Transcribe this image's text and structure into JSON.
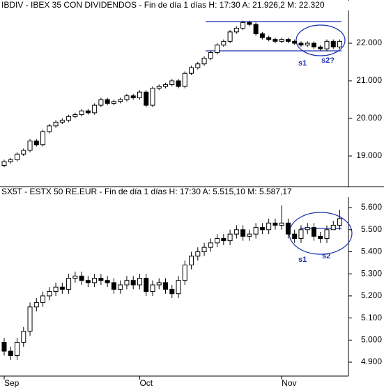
{
  "chart_data": [
    {
      "type": "candlestick",
      "title": "IBDIV - IBEX 35 CON DIVIDENDOS - Fin de día 1 días H: 17:30 A: 21.926,2 M: 22.320",
      "up_color": "#ffffff",
      "down_color": "#000000",
      "open": [
        18750,
        18850,
        18900,
        19050,
        19150,
        19400,
        19300,
        19650,
        19800,
        19900,
        19950,
        20050,
        20100,
        20200,
        20150,
        20350,
        20500,
        20400,
        20450,
        20500,
        20600,
        20550,
        20700,
        20350,
        20800,
        20850,
        20900,
        21000,
        20850,
        21200,
        21350,
        21450,
        21600,
        21750,
        21950,
        22050,
        22300,
        22400,
        22550,
        22500,
        22250,
        22150,
        22100,
        22050,
        22100,
        22050,
        22000,
        21950,
        22000,
        21900,
        21850,
        22050,
        21900
      ],
      "high": [
        18900,
        18950,
        19100,
        19200,
        19450,
        19450,
        19700,
        19850,
        19950,
        20000,
        20100,
        20150,
        20250,
        20250,
        20400,
        20550,
        20550,
        20500,
        20550,
        20650,
        20650,
        20750,
        20750,
        20850,
        20900,
        20950,
        21050,
        21050,
        21250,
        21400,
        21500,
        21650,
        21800,
        22000,
        22100,
        22350,
        22450,
        22600,
        22600,
        22550,
        22300,
        22200,
        22150,
        22150,
        22150,
        22100,
        22050,
        22050,
        22050,
        21950,
        22100,
        22100,
        22100
      ],
      "low": [
        18700,
        18800,
        18850,
        19000,
        19100,
        19250,
        19250,
        19600,
        19750,
        19850,
        19900,
        20000,
        20050,
        20100,
        20100,
        20300,
        20350,
        20350,
        20400,
        20450,
        20500,
        20500,
        20300,
        20300,
        20750,
        20800,
        20850,
        20800,
        20800,
        21150,
        21300,
        21400,
        21550,
        21700,
        21900,
        22000,
        22250,
        22350,
        22450,
        22200,
        22100,
        22050,
        22000,
        22000,
        22000,
        21950,
        21900,
        21900,
        21850,
        21800,
        21800,
        21850,
        21850
      ],
      "close": [
        18850,
        18900,
        19050,
        19150,
        19400,
        19300,
        19650,
        19800,
        19900,
        19950,
        20050,
        20100,
        20200,
        20150,
        20350,
        20500,
        20400,
        20450,
        20500,
        20600,
        20550,
        20700,
        20350,
        20800,
        20850,
        20900,
        21000,
        20850,
        21200,
        21350,
        21450,
        21600,
        21750,
        21950,
        22050,
        22300,
        22400,
        22550,
        22500,
        22250,
        22150,
        22100,
        22050,
        22100,
        22050,
        22000,
        21950,
        22000,
        21900,
        21850,
        22050,
        21900,
        22050
      ],
      "ylim": [
        18240,
        22890
      ],
      "yticks": [
        {
          "value": 19000,
          "label": "19.000"
        },
        {
          "value": 20000,
          "label": "20.000"
        },
        {
          "value": 21000,
          "label": "21.000"
        },
        {
          "value": 22000,
          "label": "22.000"
        }
      ],
      "annotations": [
        "s1",
        "s2?"
      ]
    },
    {
      "type": "candlestick",
      "title": "SX5T - ESTX 50 RE.EUR - Fin de día 1 días H: 17:30 A: 5.515,10 M: 5.587,17",
      "up_color": "#ffffff",
      "down_color": "#000000",
      "categories": [
        "Sep",
        null,
        null,
        null,
        null,
        null,
        null,
        null,
        null,
        null,
        null,
        null,
        null,
        null,
        null,
        null,
        null,
        null,
        null,
        null,
        null,
        "Oct",
        null,
        null,
        null,
        null,
        null,
        null,
        null,
        null,
        null,
        null,
        null,
        null,
        null,
        null,
        null,
        null,
        null,
        null,
        null,
        null,
        null,
        "Nov",
        null,
        null,
        null,
        null,
        null,
        null,
        null,
        null,
        null
      ],
      "open": [
        4990,
        4950,
        4930,
        4990,
        5040,
        5150,
        5170,
        5200,
        5220,
        5240,
        5230,
        5280,
        5290,
        5270,
        5260,
        5280,
        5270,
        5260,
        5230,
        5250,
        5270,
        5250,
        5280,
        5220,
        5250,
        5260,
        5230,
        5210,
        5270,
        5340,
        5380,
        5400,
        5420,
        5440,
        5460,
        5450,
        5480,
        5500,
        5470,
        5480,
        5510,
        5500,
        5530,
        5520,
        5530,
        5480,
        5460,
        5500,
        5510,
        5470,
        5460,
        5500,
        5520
      ],
      "high": [
        5010,
        4970,
        5010,
        5060,
        5170,
        5190,
        5220,
        5240,
        5260,
        5260,
        5300,
        5310,
        5310,
        5290,
        5300,
        5300,
        5290,
        5280,
        5270,
        5290,
        5290,
        5300,
        5300,
        5270,
        5280,
        5280,
        5250,
        5290,
        5360,
        5400,
        5420,
        5440,
        5460,
        5480,
        5480,
        5500,
        5520,
        5520,
        5500,
        5530,
        5530,
        5550,
        5550,
        5610,
        5550,
        5500,
        5520,
        5530,
        5530,
        5490,
        5520,
        5540,
        5590
      ],
      "low": [
        4930,
        4910,
        4910,
        4970,
        5020,
        5130,
        5150,
        5180,
        5200,
        5210,
        5210,
        5260,
        5250,
        5240,
        5240,
        5250,
        5240,
        5210,
        5210,
        5230,
        5230,
        5230,
        5200,
        5200,
        5230,
        5210,
        5190,
        5190,
        5250,
        5320,
        5360,
        5380,
        5400,
        5420,
        5430,
        5430,
        5460,
        5450,
        5450,
        5460,
        5480,
        5480,
        5500,
        5500,
        5460,
        5440,
        5440,
        5480,
        5450,
        5440,
        5440,
        5500,
        5500
      ],
      "close": [
        4950,
        4930,
        4990,
        5040,
        5150,
        5170,
        5200,
        5220,
        5240,
        5230,
        5280,
        5290,
        5270,
        5260,
        5280,
        5270,
        5260,
        5230,
        5250,
        5270,
        5250,
        5280,
        5220,
        5250,
        5260,
        5230,
        5210,
        5270,
        5340,
        5380,
        5400,
        5420,
        5440,
        5460,
        5450,
        5480,
        5500,
        5470,
        5480,
        5510,
        5500,
        5530,
        5520,
        5530,
        5480,
        5460,
        5500,
        5510,
        5470,
        5460,
        5500,
        5520,
        5550
      ],
      "ylim": [
        4837,
        5657
      ],
      "yticks": [
        {
          "value": 4900,
          "label": "4.900"
        },
        {
          "value": 5000,
          "label": "5.000"
        },
        {
          "value": 5100,
          "label": "5.100"
        },
        {
          "value": 5200,
          "label": "5.200"
        },
        {
          "value": 5300,
          "label": "5.300"
        },
        {
          "value": 5400,
          "label": "5.400"
        },
        {
          "value": 5500,
          "label": "5.500"
        },
        {
          "value": 5600,
          "label": "5.600"
        }
      ],
      "annotations": [
        "s1",
        "s2"
      ]
    }
  ]
}
